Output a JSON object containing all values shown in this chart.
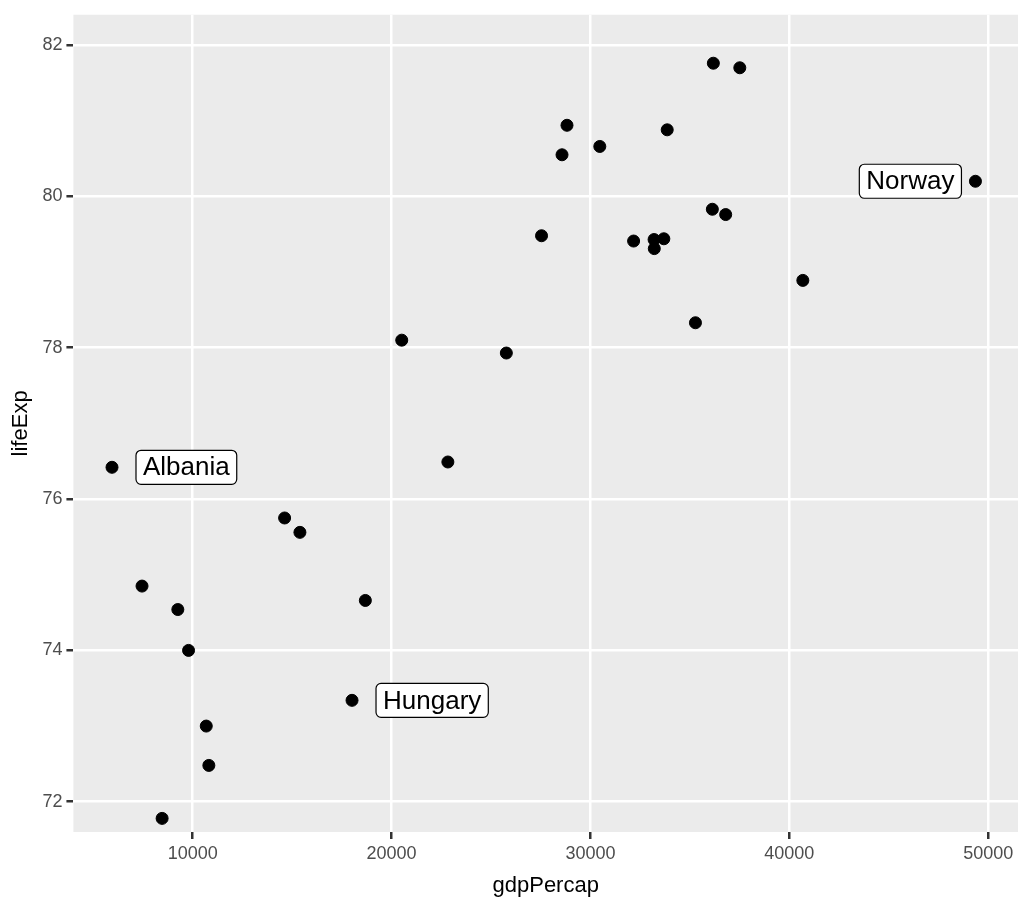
{
  "chart_data": {
    "type": "scatter",
    "xlabel": "gdpPercap",
    "ylabel": "lifeExp",
    "x": [
      5940,
      36130,
      33690,
      7450,
      10680,
      14620,
      22830,
      35280,
      33210,
      30470,
      32170,
      27540,
      18010,
      36180,
      40680,
      28570,
      9250,
      36800,
      49360,
      15390,
      20510,
      10810,
      9790,
      18680,
      25770,
      28820,
      33860,
      37510,
      8460,
      33200
    ],
    "series": [
      {
        "color": "#000000",
        "values": [
          76.42,
          79.83,
          79.44,
          74.85,
          73.0,
          75.75,
          76.49,
          78.33,
          79.31,
          80.66,
          79.41,
          79.48,
          73.34,
          81.76,
          78.89,
          80.55,
          74.54,
          79.76,
          80.2,
          75.56,
          78.1,
          72.48,
          74.0,
          74.66,
          77.93,
          80.94,
          80.88,
          81.7,
          71.78,
          79.43
        ]
      }
    ],
    "xlim": [
      4000,
      51500
    ],
    "ylim": [
      71.6,
      82.4
    ],
    "xticks": [
      10000,
      20000,
      30000,
      40000,
      50000
    ],
    "yticks": [
      72,
      74,
      76,
      78,
      80,
      82
    ],
    "grid": true,
    "legend": false,
    "marker": "circle",
    "annotations": [
      {
        "text": "Norway",
        "x": 49360,
        "y": 80.2
      },
      {
        "text": "Albania",
        "x": 5940,
        "y": 76.42
      },
      {
        "text": "Hungary",
        "x": 18010,
        "y": 73.34
      }
    ]
  }
}
